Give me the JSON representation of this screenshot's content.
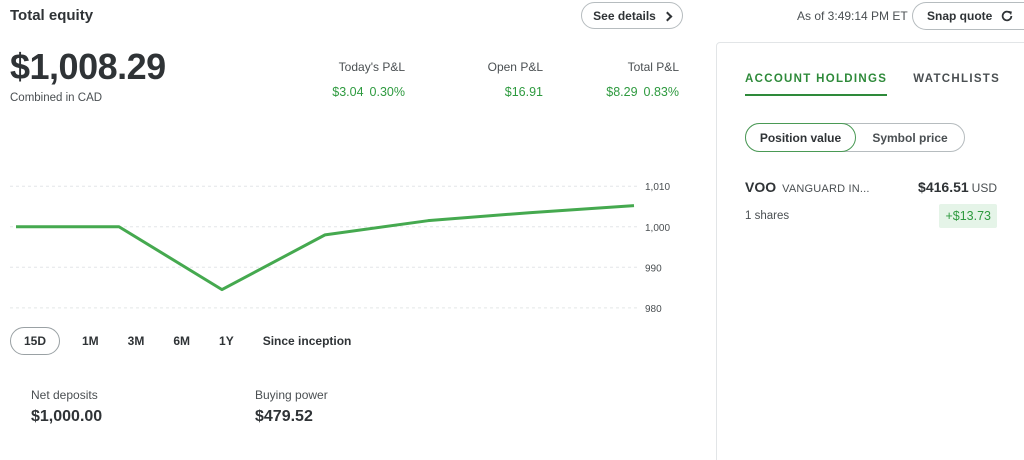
{
  "header": {
    "title": "Total equity",
    "see_details": "See details",
    "as_of": "As of 3:49:14 PM ET",
    "snap_quote": "Snap quote"
  },
  "equity": {
    "value": "$1,008.29",
    "currency_note": "Combined in CAD"
  },
  "pnl": {
    "today": {
      "label": "Today's P&L",
      "amount": "$3.04",
      "pct": "0.30%"
    },
    "open": {
      "label": "Open P&L",
      "amount": "$16.91"
    },
    "total": {
      "label": "Total P&L",
      "amount": "$8.29",
      "pct": "0.83%"
    }
  },
  "chart_data": {
    "type": "line",
    "x": [
      1,
      2,
      3,
      4,
      5,
      6,
      7
    ],
    "series": [
      {
        "values": [
          1000,
          1000,
          984.5,
          998,
          1001.5,
          1003.5,
          1005.2
        ]
      }
    ],
    "ylim": [
      977,
      1014
    ],
    "yticks": [
      1010,
      1000,
      990,
      980
    ],
    "ytick_labels": [
      "1,010",
      "1,000",
      "990",
      "980"
    ],
    "grid": "dashed horizontal",
    "color": "#45a94f"
  },
  "periods": {
    "items": [
      "15D",
      "1M",
      "3M",
      "6M",
      "1Y",
      "Since inception"
    ],
    "active": "15D"
  },
  "stats": {
    "net_deposits": {
      "label": "Net deposits",
      "value": "$1,000.00"
    },
    "buying_power": {
      "label": "Buying power",
      "value": "$479.52"
    }
  },
  "holdings_panel": {
    "tabs": [
      "ACCOUNT HOLDINGS",
      "WATCHLISTS"
    ],
    "active_tab": "ACCOUNT HOLDINGS",
    "toggle": {
      "selected": "Position value",
      "other": "Symbol price"
    },
    "holdings": [
      {
        "symbol": "VOO",
        "name": "VANGUARD IN...",
        "value": "$416.51",
        "currency": "USD",
        "shares": "1 shares",
        "gain": "+$13.73"
      }
    ]
  },
  "colors": {
    "accent_green": "#2e9a3f",
    "line_green": "#45a94f"
  },
  "icons": {
    "see_details": "chevron-right-icon",
    "snap_quote": "refresh-icon"
  }
}
